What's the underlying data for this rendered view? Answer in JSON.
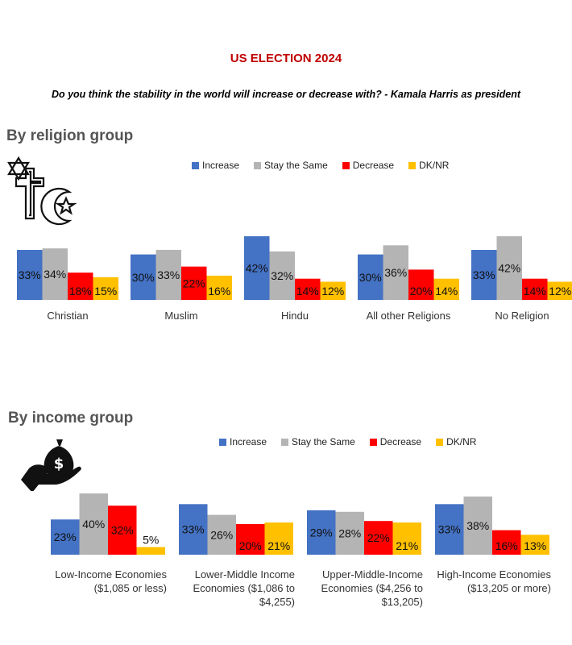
{
  "header": {
    "title": "US ELECTION 2024",
    "subtitle": "Do you think the stability in the world will increase or decrease with? - Kamala Harris as president"
  },
  "sections": {
    "religion": {
      "heading": "By religion group",
      "icon": "religion-symbols-icon"
    },
    "income": {
      "heading": "By income group",
      "icon": "money-bag-hand-icon"
    }
  },
  "colors": {
    "Increase": "#4472c4",
    "Stay the Same": "#b4b4b4",
    "Decrease": "#ff0000",
    "DK/NR": "#ffc000"
  },
  "chart_data": [
    {
      "type": "bar",
      "title": "By religion group",
      "legend": [
        "Increase",
        "Stay the Same",
        "Decrease",
        "DK/NR"
      ],
      "legend_position": "top",
      "categories": [
        [
          "Christian"
        ],
        [
          "Muslim"
        ],
        [
          "Hindu"
        ],
        [
          "All other Religions"
        ],
        [
          "No Religion"
        ]
      ],
      "series": [
        {
          "name": "Increase",
          "values": [
            33,
            30,
            42,
            30,
            33
          ]
        },
        {
          "name": "Stay the Same",
          "values": [
            34,
            33,
            32,
            36,
            42
          ]
        },
        {
          "name": "Decrease",
          "values": [
            18,
            22,
            14,
            20,
            14
          ]
        },
        {
          "name": "DK/NR",
          "values": [
            15,
            16,
            12,
            14,
            12
          ]
        }
      ],
      "unit": "%",
      "grid": false
    },
    {
      "type": "bar",
      "title": "By income group",
      "legend": [
        "Increase",
        "Stay the Same",
        "Decrease",
        "DK/NR"
      ],
      "legend_position": "top",
      "categories": [
        [
          "Low-Income Economies",
          "($1,085 or less)"
        ],
        [
          "Lower-Middle Income",
          "Economies ($1,086 to",
          "$4,255)"
        ],
        [
          "Upper-Middle-Income",
          "Economies ($4,256 to",
          "$13,205)"
        ],
        [
          "High-Income Economies",
          "($13,205 or more)"
        ]
      ],
      "series": [
        {
          "name": "Increase",
          "values": [
            23,
            33,
            29,
            33
          ]
        },
        {
          "name": "Stay the Same",
          "values": [
            40,
            26,
            28,
            38
          ]
        },
        {
          "name": "Decrease",
          "values": [
            32,
            20,
            22,
            16
          ]
        },
        {
          "name": "DK/NR",
          "values": [
            5,
            21,
            21,
            13
          ]
        }
      ],
      "unit": "%",
      "grid": false
    }
  ]
}
